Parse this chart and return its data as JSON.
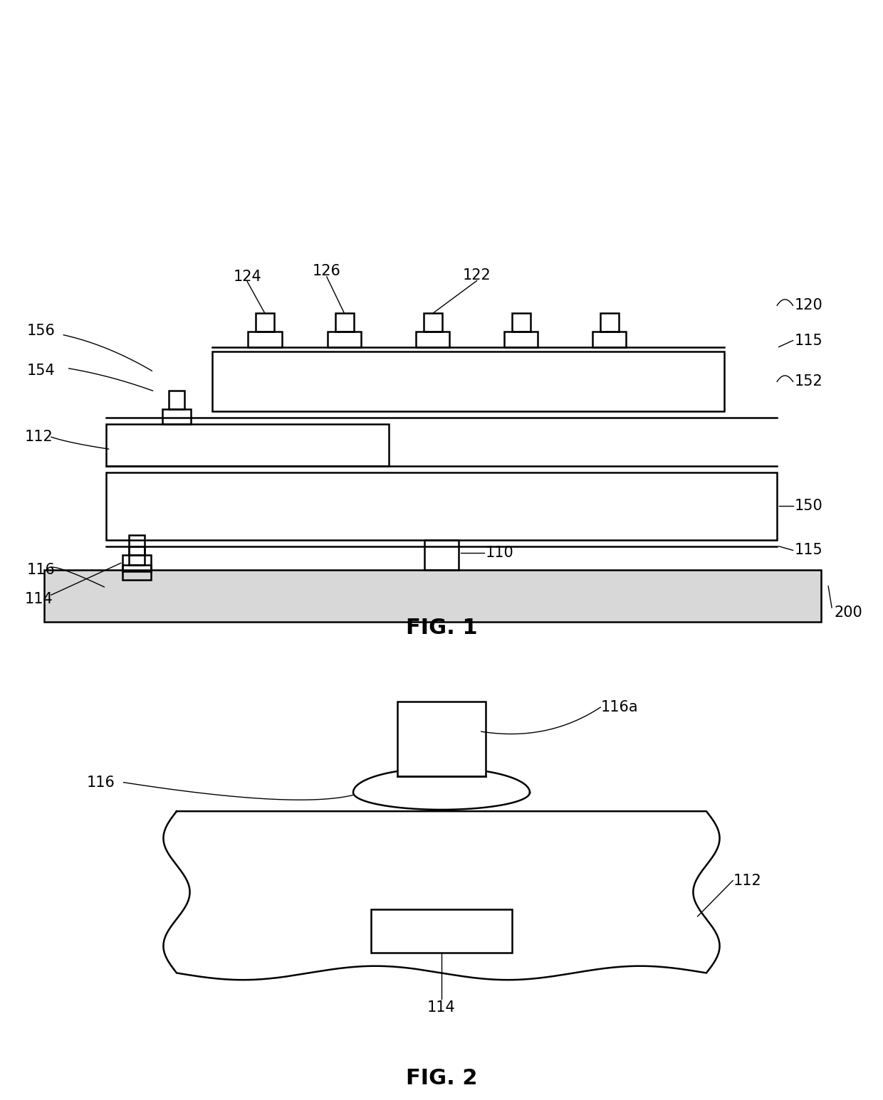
{
  "bg_color": "#ffffff",
  "line_color": "#000000",
  "lw": 1.8,
  "lw_thin": 1.0,
  "fig1_title": "FIG. 1",
  "fig2_title": "FIG. 2",
  "fontsize_label": 15,
  "fontsize_title": 22
}
